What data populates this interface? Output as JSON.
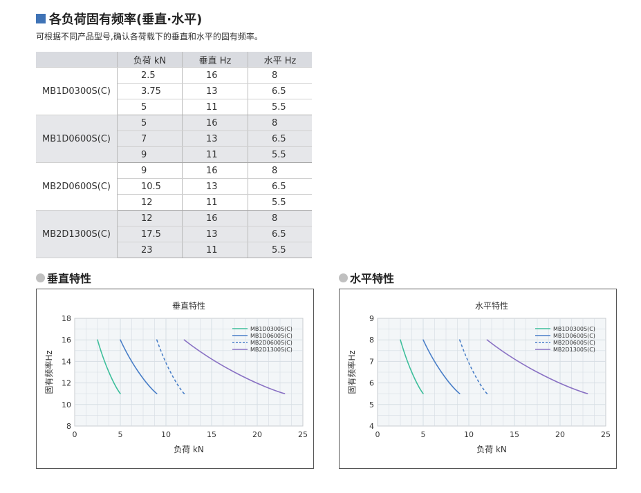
{
  "heading": "各负荷固有频率(垂直·水平)",
  "subtitle": "可根据不同产品型号,确认各荷载下的垂直和水平的固有频率。",
  "table": {
    "headers": [
      "",
      "负荷 kN",
      "垂直 Hz",
      "水平 Hz"
    ],
    "groups": [
      {
        "model": "MB1D0300S(C)",
        "rows": [
          [
            "2.5",
            "16",
            "8"
          ],
          [
            "3.75",
            "13",
            "6.5"
          ],
          [
            "5",
            "11",
            "5.5"
          ]
        ]
      },
      {
        "model": "MB1D0600S(C)",
        "rows": [
          [
            "5",
            "16",
            "8"
          ],
          [
            "7",
            "13",
            "6.5"
          ],
          [
            "9",
            "11",
            "5.5"
          ]
        ]
      },
      {
        "model": "MB2D0600S(C)",
        "rows": [
          [
            "9",
            "16",
            "8"
          ],
          [
            "10.5",
            "13",
            "6.5"
          ],
          [
            "12",
            "11",
            "5.5"
          ]
        ]
      },
      {
        "model": "MB2D1300S(C)",
        "rows": [
          [
            "12",
            "16",
            "8"
          ],
          [
            "17.5",
            "13",
            "6.5"
          ],
          [
            "23",
            "11",
            "5.5"
          ]
        ]
      }
    ]
  },
  "sections": {
    "vertical": "垂直特性",
    "horizontal": "水平特性"
  },
  "colors": {
    "heading_square": "#3f73b6",
    "mb1d0300": "#3fbf9c",
    "mb1d0600": "#4a7fc8",
    "mb2d0600": "#4a7fc8",
    "mb2d1300": "#8a72c4"
  },
  "chart_data": [
    {
      "type": "line",
      "title": "垂直特性",
      "xlabel": "负荷 kN",
      "ylabel": "固有频率Hz",
      "xlim": [
        0,
        25
      ],
      "ylim": [
        8,
        18
      ],
      "xticks": [
        "0",
        "5",
        "10",
        "15",
        "20",
        "25"
      ],
      "yticks": [
        "8",
        "10",
        "12",
        "14",
        "16",
        "18"
      ],
      "grid": true,
      "legend": "top-right",
      "series": [
        {
          "name": "MB1D0300S(C)",
          "style": "solid",
          "x": [
            2.5,
            3.75,
            5
          ],
          "y": [
            16,
            13,
            11
          ]
        },
        {
          "name": "MB1D0600S(C)",
          "style": "solid",
          "x": [
            5,
            7,
            9
          ],
          "y": [
            16,
            13,
            11
          ]
        },
        {
          "name": "MB2D0600S(C)",
          "style": "dashed",
          "x": [
            9,
            10.5,
            12
          ],
          "y": [
            16,
            13,
            11
          ]
        },
        {
          "name": "MB2D1300S(C)",
          "style": "solid",
          "x": [
            12,
            17.5,
            23
          ],
          "y": [
            16,
            13,
            11
          ]
        }
      ]
    },
    {
      "type": "line",
      "title": "水平特性",
      "xlabel": "负荷 kN",
      "ylabel": "固有频率Hz",
      "xlim": [
        0,
        25
      ],
      "ylim": [
        4,
        9
      ],
      "xticks": [
        "0",
        "5",
        "10",
        "15",
        "20",
        "25"
      ],
      "yticks": [
        "4",
        "5",
        "6",
        "7",
        "8",
        "9"
      ],
      "grid": true,
      "legend": "top-right",
      "series": [
        {
          "name": "MB1D0300S(C)",
          "style": "solid",
          "x": [
            2.5,
            3.75,
            5
          ],
          "y": [
            8,
            6.5,
            5.5
          ]
        },
        {
          "name": "MB1D0600S(C)",
          "style": "solid",
          "x": [
            5,
            7,
            9
          ],
          "y": [
            8,
            6.5,
            5.5
          ]
        },
        {
          "name": "MB2D0600S(C)",
          "style": "dashed",
          "x": [
            9,
            10.5,
            12
          ],
          "y": [
            8,
            6.5,
            5.5
          ]
        },
        {
          "name": "MB2D1300S(C)",
          "style": "solid",
          "x": [
            12,
            17.5,
            23
          ],
          "y": [
            8,
            6.5,
            5.5
          ]
        }
      ]
    }
  ]
}
